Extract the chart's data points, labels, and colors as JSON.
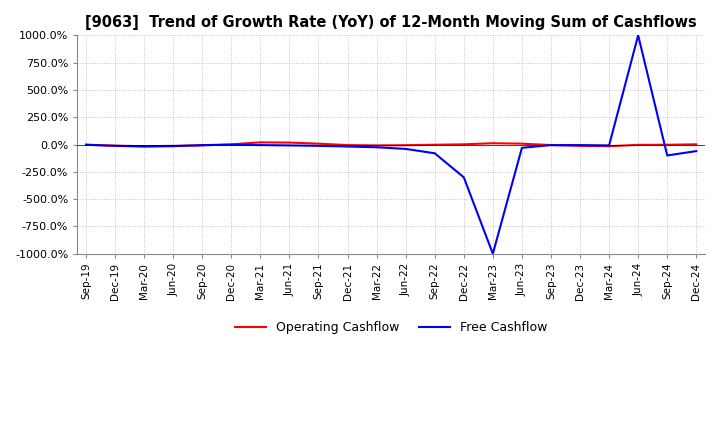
{
  "title": "[9063]  Trend of Growth Rate (YoY) of 12-Month Moving Sum of Cashflows",
  "ylim": [
    -1000,
    1000
  ],
  "yticks": [
    -1000,
    -750,
    -500,
    -250,
    0,
    250,
    500,
    750,
    1000
  ],
  "ytick_labels": [
    "-1000.0%",
    "-750.0%",
    "-500.0%",
    "-250.0%",
    "0.0%",
    "250.0%",
    "500.0%",
    "750.0%",
    "1000.0%"
  ],
  "background_color": "#ffffff",
  "grid_color": "#999999",
  "operating_color": "#ff0000",
  "free_color": "#0000ff",
  "legend_labels": [
    "Operating Cashflow",
    "Free Cashflow"
  ],
  "x_labels": [
    "Sep-19",
    "Dec-19",
    "Mar-20",
    "Jun-20",
    "Sep-20",
    "Dec-20",
    "Mar-21",
    "Jun-21",
    "Sep-21",
    "Dec-21",
    "Mar-22",
    "Jun-22",
    "Sep-22",
    "Dec-22",
    "Mar-23",
    "Jun-23",
    "Sep-23",
    "Dec-23",
    "Mar-24",
    "Jun-24",
    "Sep-24",
    "Dec-24"
  ],
  "operating_cashflow": [
    -2,
    -10,
    -15,
    -12,
    -8,
    2,
    20,
    18,
    8,
    -5,
    -8,
    -6,
    -2,
    2,
    12,
    8,
    -5,
    -12,
    -15,
    -3,
    -2,
    2
  ],
  "free_cashflow": [
    -2,
    -12,
    -18,
    -15,
    -5,
    -2,
    -5,
    -8,
    -12,
    -18,
    -25,
    -40,
    -80,
    -300,
    -1000,
    -30,
    -5,
    -5,
    -8,
    1000,
    -100,
    -60
  ]
}
